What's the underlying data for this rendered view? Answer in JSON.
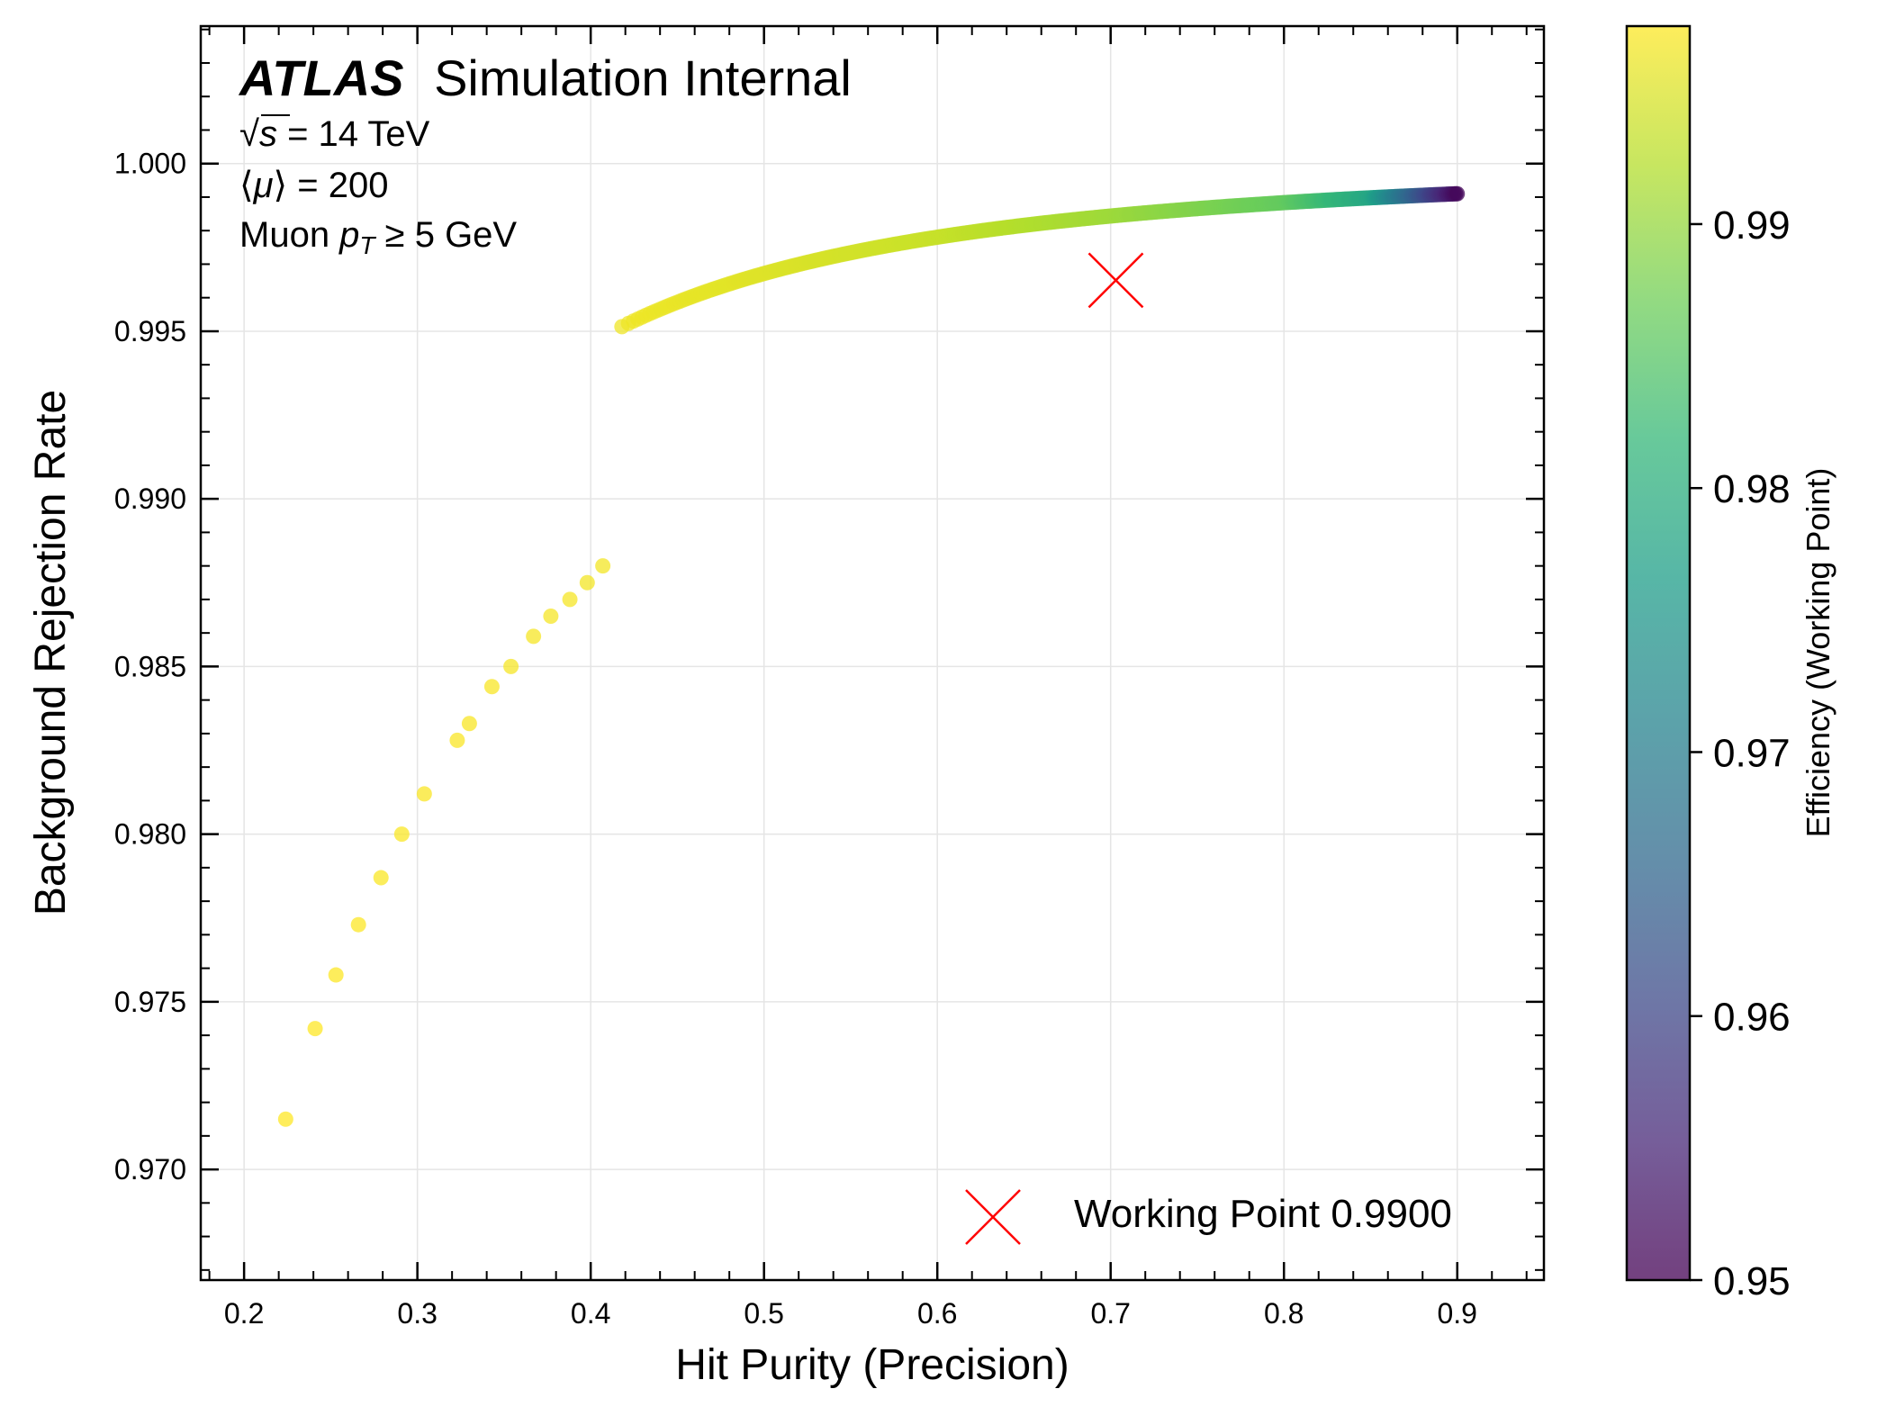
{
  "chart_data": {
    "type": "scatter",
    "title": "",
    "xlabel": "Hit Purity (Precision)",
    "ylabel": "Background Rejection Rate",
    "xlim": [
      0.175,
      0.95
    ],
    "ylim": [
      0.9667,
      1.0041
    ],
    "xticks": [
      0.2,
      0.3,
      0.4,
      0.5,
      0.6,
      0.7,
      0.8,
      0.9
    ],
    "xtick_labels": [
      "0.2",
      "0.3",
      "0.4",
      "0.5",
      "0.6",
      "0.7",
      "0.8",
      "0.9"
    ],
    "yticks": [
      0.97,
      0.975,
      0.98,
      0.985,
      0.99,
      0.995,
      1.0
    ],
    "ytick_labels": [
      "0.970",
      "0.975",
      "0.980",
      "0.985",
      "0.990",
      "0.995",
      "1.000"
    ],
    "grid": true,
    "colorbar": {
      "label": "Efficiency (Working Point)",
      "range": [
        0.95,
        0.9975
      ],
      "ticks": [
        0.95,
        0.96,
        0.97,
        0.98,
        0.99
      ],
      "tick_labels": [
        "0.95",
        "0.96",
        "0.97",
        "0.98",
        "0.99"
      ],
      "colormap": "viridis",
      "alpha": 0.75
    },
    "annotations": {
      "experiment": "ATLAS",
      "status": "Simulation Internal",
      "energy_prefix": "√",
      "energy_var": "s",
      "energy_rest": " = 14 TeV",
      "pileup_lb": "⟨",
      "pileup_var": "μ",
      "pileup_rest": "⟩ = 200",
      "cut_prefix": "Muon ",
      "cut_var": "p",
      "cut_sub": "T",
      "cut_rest": " ≥ 5 GeV"
    },
    "sparse_points": [
      {
        "x": 0.224,
        "y": 0.9715,
        "eff": 0.9975
      },
      {
        "x": 0.241,
        "y": 0.9742,
        "eff": 0.9975
      },
      {
        "x": 0.253,
        "y": 0.9758,
        "eff": 0.9974
      },
      {
        "x": 0.266,
        "y": 0.9773,
        "eff": 0.9974
      },
      {
        "x": 0.279,
        "y": 0.9787,
        "eff": 0.9973
      },
      {
        "x": 0.291,
        "y": 0.98,
        "eff": 0.9973
      },
      {
        "x": 0.304,
        "y": 0.9812,
        "eff": 0.9972
      },
      {
        "x": 0.323,
        "y": 0.9828,
        "eff": 0.9972
      },
      {
        "x": 0.33,
        "y": 0.9833,
        "eff": 0.9971
      },
      {
        "x": 0.343,
        "y": 0.9844,
        "eff": 0.9971
      },
      {
        "x": 0.354,
        "y": 0.985,
        "eff": 0.997
      },
      {
        "x": 0.367,
        "y": 0.9859,
        "eff": 0.997
      },
      {
        "x": 0.377,
        "y": 0.9865,
        "eff": 0.9969
      },
      {
        "x": 0.388,
        "y": 0.987,
        "eff": 0.9969
      },
      {
        "x": 0.398,
        "y": 0.9875,
        "eff": 0.9968
      },
      {
        "x": 0.407,
        "y": 0.988,
        "eff": 0.9968
      }
    ],
    "curve": {
      "x_start": 0.418,
      "x_end": 0.9,
      "rejection_model": "1 - 0.0009*(0.9/x)^2.2",
      "efficiency_knots": [
        [
          0.418,
          0.9965
        ],
        [
          0.6,
          0.9935
        ],
        [
          0.7,
          0.9905
        ],
        [
          0.8,
          0.986
        ],
        [
          0.85,
          0.978
        ],
        [
          0.9,
          0.951
        ]
      ]
    },
    "working_point": {
      "x": 0.703,
      "y": 0.99652,
      "label": "Working Point 0.9900",
      "marker": "x",
      "color": "#ff0000"
    },
    "legend": {
      "placement": "lower-right",
      "entries": [
        "Working Point 0.9900"
      ]
    }
  }
}
